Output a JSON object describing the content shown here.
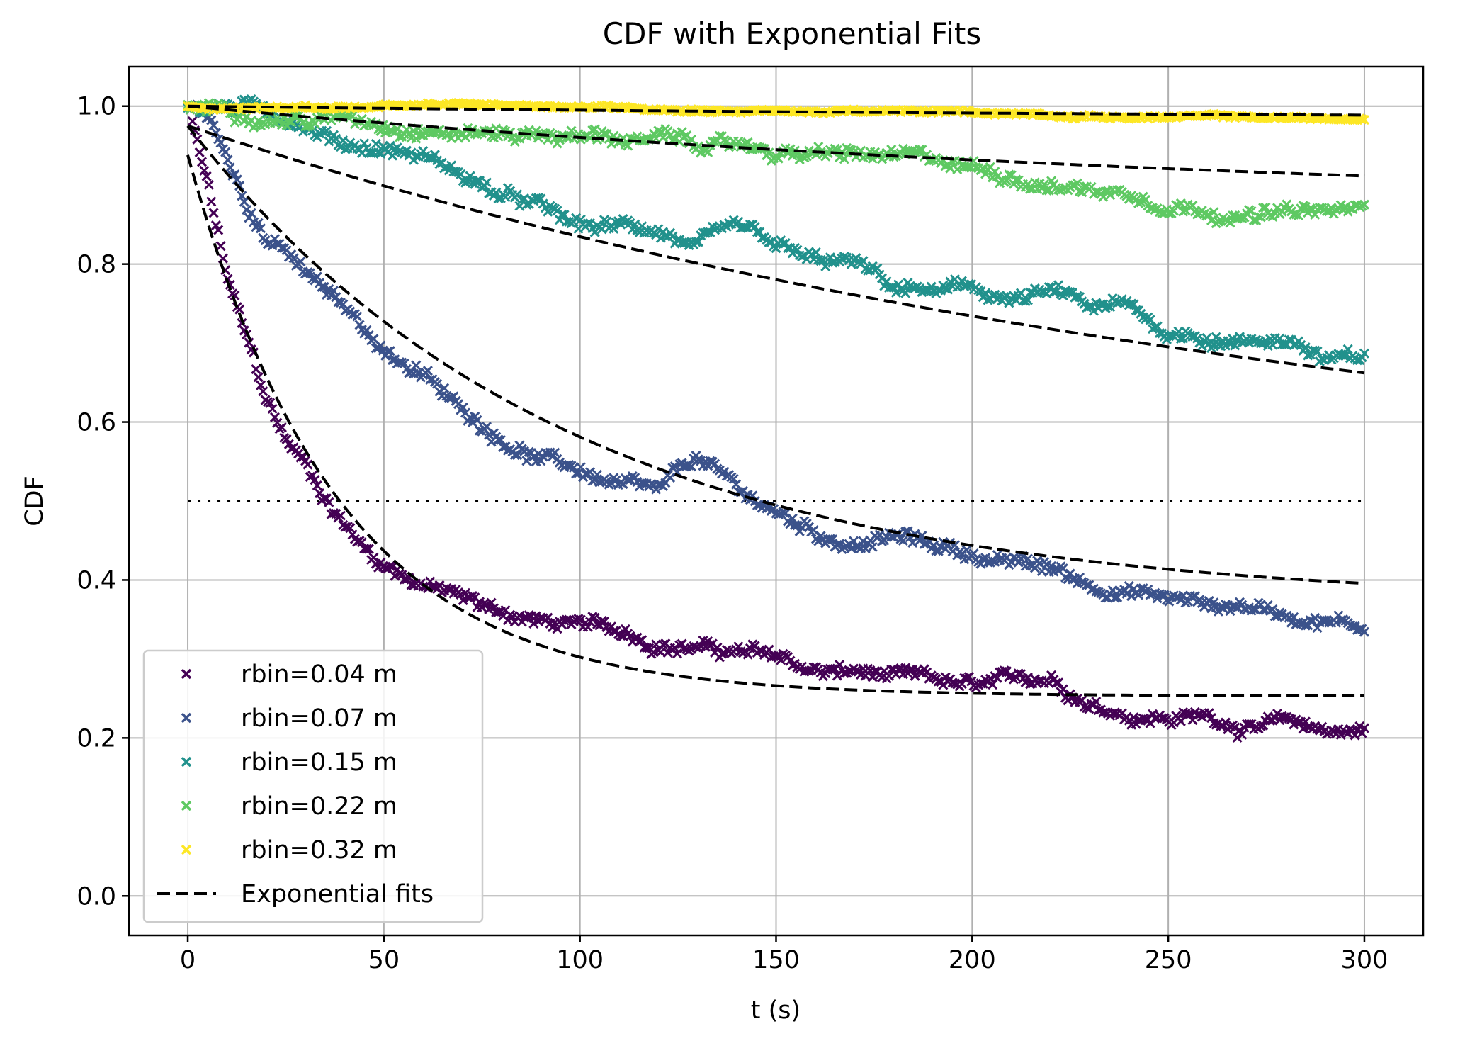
{
  "chart_data": {
    "type": "scatter",
    "title": "CDF with Exponential Fits",
    "xlabel": "t (s)",
    "ylabel": "CDF",
    "xlim": [
      -15,
      315
    ],
    "ylim": [
      -0.05,
      1.05
    ],
    "xticks": [
      0,
      50,
      100,
      150,
      200,
      250,
      300
    ],
    "xtick_labels": [
      "0",
      "50",
      "100",
      "150",
      "200",
      "250",
      "300"
    ],
    "yticks": [
      0.0,
      0.2,
      0.4,
      0.6,
      0.8,
      1.0
    ],
    "ytick_labels": [
      "0.0",
      "0.2",
      "0.4",
      "0.6",
      "0.8",
      "1.0"
    ],
    "grid": true,
    "legend_position": "lower-left",
    "reference_line": {
      "y": 0.5,
      "x_range": [
        0,
        300
      ],
      "style": "dotted",
      "color": "#000000"
    },
    "series": [
      {
        "name": "rbin=0.04 m",
        "color": "#440154",
        "marker": "x",
        "x": [
          0,
          5,
          10,
          15,
          20,
          25,
          30,
          35,
          40,
          45,
          50,
          60,
          70,
          80,
          90,
          100,
          110,
          120,
          130,
          140,
          150,
          160,
          170,
          180,
          190,
          200,
          210,
          220,
          230,
          240,
          250,
          260,
          270,
          280,
          290,
          300
        ],
        "y": [
          1.0,
          0.9,
          0.78,
          0.7,
          0.62,
          0.57,
          0.54,
          0.5,
          0.47,
          0.44,
          0.42,
          0.4,
          0.38,
          0.36,
          0.35,
          0.34,
          0.33,
          0.32,
          0.32,
          0.31,
          0.3,
          0.28,
          0.28,
          0.27,
          0.26,
          0.25,
          0.25,
          0.26,
          0.24,
          0.23,
          0.23,
          0.23,
          0.22,
          0.22,
          0.21,
          0.21
        ]
      },
      {
        "name": "rbin=0.07 m",
        "color": "#3b528b",
        "marker": "x",
        "x": [
          0,
          5,
          10,
          15,
          20,
          25,
          30,
          40,
          50,
          60,
          70,
          80,
          90,
          100,
          110,
          120,
          130,
          140,
          150,
          160,
          170,
          180,
          190,
          200,
          210,
          220,
          230,
          240,
          250,
          260,
          270,
          280,
          290,
          300
        ],
        "y": [
          1.0,
          0.99,
          0.93,
          0.88,
          0.84,
          0.82,
          0.79,
          0.74,
          0.69,
          0.66,
          0.61,
          0.58,
          0.56,
          0.54,
          0.52,
          0.5,
          0.54,
          0.5,
          0.47,
          0.45,
          0.44,
          0.45,
          0.44,
          0.43,
          0.42,
          0.41,
          0.39,
          0.39,
          0.38,
          0.37,
          0.37,
          0.36,
          0.36,
          0.35
        ]
      },
      {
        "name": "rbin=0.15 m",
        "color": "#21918c",
        "marker": "x",
        "x": [
          0,
          10,
          20,
          30,
          40,
          50,
          60,
          70,
          80,
          90,
          100,
          110,
          120,
          130,
          140,
          150,
          160,
          170,
          180,
          190,
          200,
          210,
          220,
          230,
          240,
          250,
          260,
          270,
          280,
          290,
          300
        ],
        "y": [
          1.0,
          1.0,
          0.995,
          0.98,
          0.96,
          0.955,
          0.945,
          0.92,
          0.89,
          0.87,
          0.84,
          0.84,
          0.84,
          0.82,
          0.83,
          0.8,
          0.78,
          0.78,
          0.75,
          0.75,
          0.75,
          0.74,
          0.75,
          0.73,
          0.73,
          0.7,
          0.7,
          0.7,
          0.71,
          0.68,
          0.675
        ]
      },
      {
        "name": "rbin=0.22 m",
        "color": "#5ec962",
        "marker": "x",
        "x": [
          0,
          10,
          20,
          30,
          40,
          50,
          60,
          70,
          80,
          90,
          100,
          110,
          120,
          130,
          140,
          150,
          160,
          170,
          180,
          190,
          200,
          210,
          220,
          230,
          240,
          250,
          260,
          270,
          280,
          290,
          300
        ],
        "y": [
          1.0,
          1.0,
          1.0,
          0.995,
          0.995,
          0.99,
          0.99,
          0.985,
          0.98,
          0.98,
          0.975,
          0.97,
          0.965,
          0.955,
          0.95,
          0.945,
          0.94,
          0.935,
          0.93,
          0.92,
          0.915,
          0.91,
          0.905,
          0.9,
          0.895,
          0.89,
          0.885,
          0.88,
          0.875,
          0.87,
          0.87
        ]
      },
      {
        "name": "rbin=0.32 m",
        "color": "#fde725",
        "marker": "x",
        "x": [
          0,
          20,
          40,
          60,
          80,
          100,
          120,
          140,
          160,
          180,
          200,
          220,
          240,
          260,
          280,
          300
        ],
        "y": [
          1.0,
          1.0,
          1.0,
          1.0,
          1.0,
          1.0,
          0.998,
          0.997,
          0.995,
          0.993,
          0.99,
          0.99,
          0.988,
          0.987,
          0.985,
          0.982
        ]
      },
      {
        "name": "Exponential fits",
        "color": "#000000",
        "style": "dashed",
        "fits": [
          {
            "for": "rbin=0.04 m",
            "x0": 0,
            "a": 0.685,
            "tau": 38,
            "c": 0.253
          },
          {
            "for": "rbin=0.07 m",
            "x0": 0,
            "a": 0.605,
            "tau": 95,
            "c": 0.37
          },
          {
            "for": "rbin=0.15 m",
            "x0": 0,
            "a": 0.495,
            "tau": 300,
            "c": 0.48
          },
          {
            "for": "rbin=0.22 m",
            "x0": 0,
            "a": 0.14,
            "tau": 300,
            "c": 0.86
          },
          {
            "for": "rbin=0.32 m",
            "x0": 0,
            "a": 0.018,
            "tau": 300,
            "c": 0.982
          }
        ]
      }
    ]
  }
}
